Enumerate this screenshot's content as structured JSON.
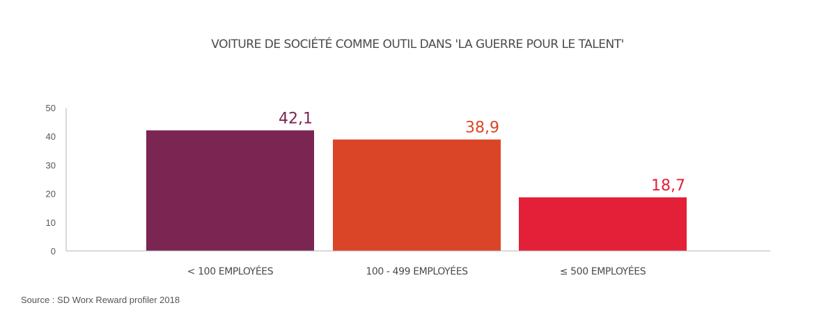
{
  "chart_data": {
    "type": "bar",
    "title": "VOITURE DE SOCIÉTÉ COMME OUTIL DANS 'LA GUERRE POUR LE TALENT'",
    "categories": [
      "< 100 EMPLOYÉES",
      "100 - 499 EMPLOYÉES",
      "≤ 500 EMPLOYÉES"
    ],
    "values": [
      42.1,
      38.9,
      18.7
    ],
    "value_labels": [
      "42,1",
      "38,9",
      "18,7"
    ],
    "colors": [
      "#7b2553",
      "#db4527",
      "#e41f38"
    ],
    "xlabel": "",
    "ylabel": "",
    "ylim": [
      0,
      50
    ],
    "yticks": [
      0,
      10,
      20,
      30,
      40,
      50
    ],
    "grid": false,
    "legend": "none"
  },
  "source": "Source : SD Worx Reward profiler 2018"
}
